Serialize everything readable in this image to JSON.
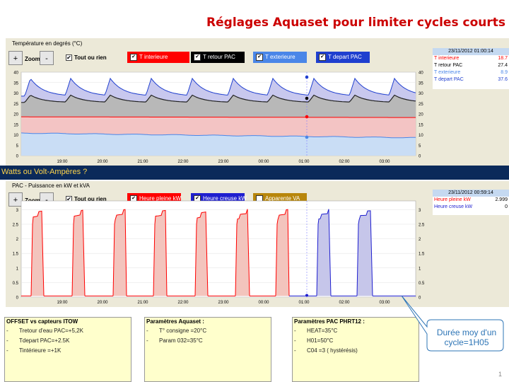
{
  "title": "Réglages Aquaset pour limiter  cycles courts",
  "colors": {
    "t_interieure": "#ff0000",
    "t_retour_pac": "#000000",
    "t_exterieure": "#4a86e8",
    "t_depart_pac": "#1f3fcf",
    "heure_pleine": "#ff0000",
    "heure_creuse": "#1f1fcf",
    "apparente": "#b8860b"
  },
  "top_chart": {
    "title": "Température en degrés (°C)",
    "zoom_in": "+",
    "zoom_label": "Zoom",
    "zoom_out": "-",
    "tout_ou_rien": "Tout ou rien",
    "legend": [
      {
        "label": "T interieure",
        "color": "#ff0000",
        "checked": true
      },
      {
        "label": "T retour PAC",
        "color": "#000000",
        "checked": true
      },
      {
        "label": "T exterieure",
        "color": "#4a86e8",
        "checked": true
      },
      {
        "label": "T depart PAC",
        "color": "#1f3fcf",
        "checked": true
      }
    ],
    "info": {
      "timestamp": "23/11/2012 01:00:14",
      "rows": [
        {
          "label": "T interieure",
          "value": "18.7",
          "color": "#ff0000"
        },
        {
          "label": "T retour PAC",
          "value": "27.4",
          "color": "#000000"
        },
        {
          "label": "T exterieure",
          "value": "8.9",
          "color": "#4a86e8"
        },
        {
          "label": "T depart PAC",
          "value": "37.6",
          "color": "#1f3fcf"
        }
      ]
    },
    "y_ticks": [
      "40",
      "35",
      "30",
      "25",
      "20",
      "15",
      "10",
      "5",
      "0"
    ],
    "x_ticks": [
      "19:00",
      "20:00",
      "21:00",
      "22:00",
      "23:00",
      "00:00",
      "01:00",
      "02:00",
      "03:00"
    ]
  },
  "band_text": "Watts ou Volt-Ampères ?",
  "bottom_chart": {
    "title": "PAC - Puissance en kW et kVA",
    "zoom_in": "+",
    "zoom_label": "Zoom",
    "zoom_out": "-",
    "tout_ou_rien": "Tout ou rien",
    "legend": [
      {
        "label": "Heure pleine kW",
        "color": "#ff0000",
        "checked": true
      },
      {
        "label": "Heure creuse kW",
        "color": "#1f1fcf",
        "checked": true
      },
      {
        "label": "Apparente VA",
        "color": "#b8860b",
        "checked": false
      }
    ],
    "info": {
      "timestamp": "23/11/2012 00:59:14",
      "rows": [
        {
          "label": "Heure pleine kW",
          "value": "2.999",
          "color": "#ff0000"
        },
        {
          "label": "Heure creuse kW",
          "value": "0",
          "color": "#1f1fcf"
        }
      ]
    },
    "y_ticks": [
      "3",
      "2.5",
      "2",
      "1.5",
      "1",
      "0.5",
      "0"
    ],
    "x_ticks": [
      "19:00",
      "20:00",
      "21:00",
      "22:00",
      "23:00",
      "00:00",
      "01:00",
      "02:00",
      "03:00"
    ]
  },
  "boxes": [
    {
      "title": "OFFSET vs capteurs ITOW",
      "items": [
        "Tretour d'eau PAC=+5,2K",
        "Tdepart PAC=+2.5K",
        "Tintérieure =+1K"
      ]
    },
    {
      "title": "Paramètres Aquaset :",
      "items": [
        "T° consigne =20°C",
        "Param 032=35°C"
      ]
    },
    {
      "title": "Paramètres PAC PHRT12 :",
      "items": [
        "HEAT=35°C",
        "H01=50°C",
        "C04 =3  ( hystérésis)"
      ]
    }
  ],
  "callout": "Durée moy d'un cycle=1H05",
  "page_number": "1"
}
